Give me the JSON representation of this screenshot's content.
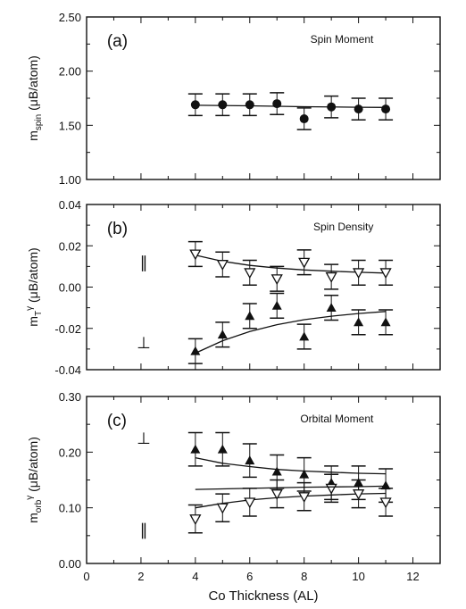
{
  "chart_data": [
    {
      "type": "scatter",
      "panel": "(a)",
      "title": "Spin Moment",
      "ylabel_main": "m",
      "ylabel_sub": "spin",
      "ylabel_unit": " (μB/atom)",
      "ylim": [
        1.0,
        2.5
      ],
      "yticks": [
        "1.00",
        "1.50",
        "2.00",
        "2.50"
      ],
      "xlim": [
        0,
        13
      ],
      "series": [
        {
          "marker": "filled-circle",
          "x": [
            4,
            5,
            6,
            7,
            8,
            9,
            10,
            11
          ],
          "y": [
            1.69,
            1.69,
            1.69,
            1.7,
            1.56,
            1.67,
            1.65,
            1.65
          ],
          "err": [
            0.1,
            0.1,
            0.1,
            0.1,
            0.1,
            0.1,
            0.1,
            0.1
          ],
          "fit": [
            [
              4,
              1.685
            ],
            [
              6,
              1.68
            ],
            [
              8,
              1.672
            ],
            [
              10,
              1.667
            ],
            [
              11,
              1.665
            ]
          ]
        }
      ]
    },
    {
      "type": "scatter",
      "panel": "(b)",
      "title": "Spin Density",
      "ylabel_main": "m",
      "ylabel_sub": "T",
      "ylabel_sup": "γ",
      "ylabel_unit": " (μB/atom)",
      "ylim": [
        -0.04,
        0.04
      ],
      "yticks": [
        "-0.04",
        "-0.02",
        "0.00",
        "0.02",
        "0.04"
      ],
      "xlim": [
        0,
        13
      ],
      "markers_text": [
        {
          "text": "∥",
          "x": 2.1,
          "y": 0.012
        },
        {
          "text": "⊥",
          "x": 2.1,
          "y": -0.027
        }
      ],
      "series": [
        {
          "marker": "open-triangle-down",
          "x": [
            4,
            5,
            6,
            7,
            8,
            9,
            10,
            11
          ],
          "y": [
            0.016,
            0.011,
            0.007,
            0.004,
            0.012,
            0.005,
            0.007,
            0.007
          ],
          "err": [
            0.006,
            0.006,
            0.006,
            0.006,
            0.006,
            0.006,
            0.006,
            0.006
          ],
          "fit": [
            [
              4,
              0.0155
            ],
            [
              5,
              0.0125
            ],
            [
              6,
              0.0105
            ],
            [
              7,
              0.0092
            ],
            [
              8,
              0.0083
            ],
            [
              9,
              0.0077
            ],
            [
              10,
              0.0072
            ],
            [
              11,
              0.0068
            ]
          ]
        },
        {
          "marker": "filled-triangle-up",
          "x": [
            4,
            5,
            6,
            7,
            8,
            9,
            10,
            11
          ],
          "y": [
            -0.031,
            -0.023,
            -0.014,
            -0.009,
            -0.024,
            -0.01,
            -0.017,
            -0.017
          ],
          "err": [
            0.006,
            0.006,
            0.006,
            0.006,
            0.006,
            0.006,
            0.006,
            0.006
          ],
          "fit": [
            [
              4,
              -0.032
            ],
            [
              5,
              -0.026
            ],
            [
              6,
              -0.0215
            ],
            [
              7,
              -0.0182
            ],
            [
              8,
              -0.0158
            ],
            [
              9,
              -0.0141
            ],
            [
              10,
              -0.0128
            ],
            [
              11,
              -0.0118
            ]
          ]
        }
      ]
    },
    {
      "type": "scatter",
      "panel": "(c)",
      "title": "Orbital Moment",
      "ylabel_main": "m",
      "ylabel_sub": "orb",
      "ylabel_sup": "γ",
      "ylabel_unit": " (μB/atom)",
      "ylim": [
        0.0,
        0.3
      ],
      "yticks": [
        "0.00",
        "0.10",
        "0.20",
        "0.30"
      ],
      "xlabel": "Co Thickness (AL)",
      "xticks": [
        "0",
        "2",
        "4",
        "6",
        "8",
        "10",
        "12"
      ],
      "xlim": [
        0,
        13
      ],
      "markers_text": [
        {
          "text": "⊥",
          "x": 2.1,
          "y": 0.225
        },
        {
          "text": "∥",
          "x": 2.1,
          "y": 0.06
        }
      ],
      "series": [
        {
          "marker": "filled-triangle-up",
          "x": [
            4,
            5,
            6,
            7,
            8,
            9,
            10,
            11
          ],
          "y": [
            0.205,
            0.205,
            0.185,
            0.165,
            0.16,
            0.145,
            0.145,
            0.14
          ],
          "err": [
            0.03,
            0.03,
            0.03,
            0.03,
            0.03,
            0.03,
            0.03,
            0.03
          ],
          "fit": [
            [
              4,
              0.19
            ],
            [
              5,
              0.18
            ],
            [
              6,
              0.174
            ],
            [
              7,
              0.169
            ],
            [
              8,
              0.166
            ],
            [
              9,
              0.164
            ],
            [
              10,
              0.162
            ],
            [
              11,
              0.161
            ]
          ]
        },
        {
          "marker": "open-triangle-down",
          "x": [
            4,
            5,
            6,
            7,
            8,
            9,
            10,
            11
          ],
          "y": [
            0.08,
            0.1,
            0.11,
            0.125,
            0.12,
            0.135,
            0.125,
            0.11
          ],
          "err": [
            0.025,
            0.025,
            0.025,
            0.025,
            0.025,
            0.025,
            0.025,
            0.025
          ],
          "fit": [
            [
              4,
              0.1
            ],
            [
              5,
              0.108
            ],
            [
              6,
              0.114
            ],
            [
              7,
              0.118
            ],
            [
              8,
              0.121
            ],
            [
              9,
              0.123
            ],
            [
              10,
              0.125
            ],
            [
              11,
              0.126
            ]
          ]
        },
        {
          "marker": "none",
          "fit": [
            [
              4,
              0.133
            ],
            [
              6,
              0.135
            ],
            [
              8,
              0.137
            ],
            [
              10,
              0.138
            ],
            [
              11,
              0.139
            ]
          ]
        }
      ]
    }
  ]
}
